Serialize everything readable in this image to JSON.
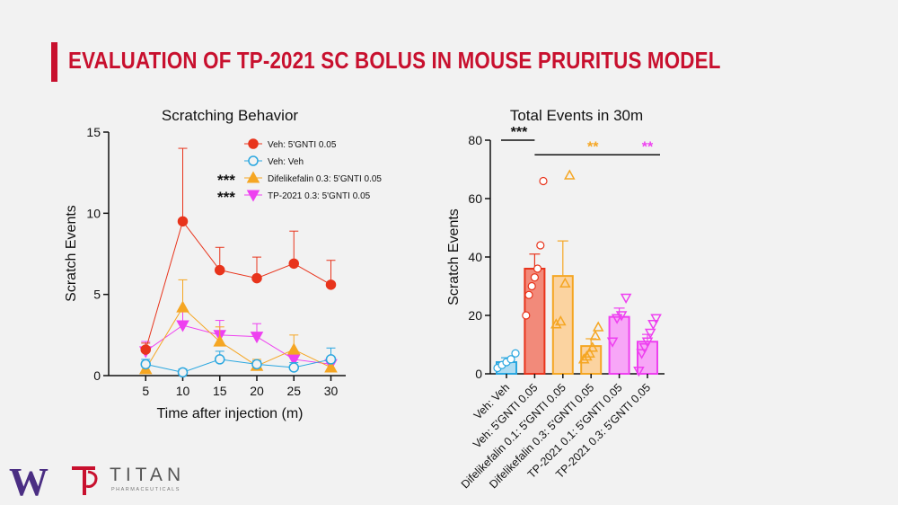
{
  "slide": {
    "title": "EVALUATION OF TP-2021 SC BOLUS IN MOUSE PRURITUS MODEL"
  },
  "logos": {
    "uw": "W",
    "titan_name": "TITAN",
    "titan_sub": "PHARMACEUTICALS"
  },
  "chart_data": [
    {
      "type": "line",
      "title": "Scratching Behavior",
      "xlabel": "Time after injection (m)",
      "ylabel": "Scratch Events",
      "x": [
        5,
        10,
        15,
        20,
        25,
        30
      ],
      "xlim": [
        0,
        32
      ],
      "ylim": [
        0,
        15
      ],
      "yticks": [
        0,
        5,
        10,
        15
      ],
      "series": [
        {
          "name": "Veh: 5'GNTI 0.05",
          "color": "#e8341c",
          "marker": "circle-filled",
          "values": [
            1.6,
            9.5,
            6.5,
            6.0,
            6.9,
            5.6
          ],
          "errors": [
            0.4,
            4.5,
            1.4,
            1.3,
            2.0,
            1.5
          ],
          "sig": ""
        },
        {
          "name": "Veh: Veh",
          "color": "#2aa7e0",
          "marker": "circle-open",
          "values": [
            0.7,
            0.2,
            1.0,
            0.7,
            0.5,
            1.0
          ],
          "errors": [
            0.3,
            0.2,
            0.5,
            0.2,
            0.3,
            0.7
          ],
          "sig": ""
        },
        {
          "name": "Difelikefalin 0.3: 5'GNTI 0.05",
          "color": "#f5a623",
          "marker": "triangle-up",
          "values": [
            0.4,
            4.2,
            2.1,
            0.6,
            1.6,
            0.5
          ],
          "errors": [
            0.4,
            1.7,
            0.9,
            0.4,
            0.9,
            0.4
          ],
          "sig": "***"
        },
        {
          "name": "TP-2021 0.3: 5'GNTI 0.05",
          "color": "#ee40f0",
          "marker": "triangle-down",
          "values": [
            1.5,
            3.1,
            2.5,
            2.4,
            1.0,
            0.7
          ],
          "errors": [
            0.6,
            0.9,
            0.9,
            0.8,
            0.5,
            0.4
          ],
          "sig": "***"
        }
      ]
    },
    {
      "type": "bar",
      "title": "Total Events in 30m",
      "xlabel": "",
      "ylabel": "Scratch Events",
      "ylim": [
        0,
        80
      ],
      "yticks": [
        0,
        20,
        40,
        60,
        80
      ],
      "categories": [
        "Veh: Veh",
        "Veh: 5'GNTI 0.05",
        "Difelikefalin 0.1: 5'GNTI 0.05",
        "Difelikefalin 0.3: 5'GNTI 0.05",
        "TP-2021 0.1: 5'GNTI 0.05",
        "TP-2021 0.3: 5'GNTI 0.05"
      ],
      "values": [
        4,
        36,
        33.5,
        9.5,
        19.5,
        11
      ],
      "errors": [
        1.5,
        5,
        12,
        2.5,
        3,
        2.5
      ],
      "colors": [
        "#2aa7e0",
        "#e8341c",
        "#f5a623",
        "#f5a623",
        "#ee40f0",
        "#ee40f0"
      ],
      "fills": [
        "#aedcf2",
        "#f28a7a",
        "#fbd3a0",
        "#fbd3a0",
        "#f7a6f7",
        "#f7a6f7"
      ],
      "markers": [
        "circle",
        "circle",
        "triangle-up",
        "triangle-up",
        "triangle-down",
        "triangle-down"
      ],
      "points": [
        [
          2,
          3,
          4,
          5,
          7
        ],
        [
          20,
          27,
          30,
          33,
          36,
          44,
          66
        ],
        [
          17,
          18,
          31,
          68
        ],
        [
          5,
          6,
          7,
          9,
          13,
          16
        ],
        [
          11,
          19,
          20,
          26
        ],
        [
          1,
          7,
          9,
          11,
          14,
          17,
          19
        ]
      ],
      "sig": [
        {
          "label": "***",
          "color": "#111111",
          "from": 0,
          "to": 1,
          "y": 80
        },
        {
          "label": "**",
          "color": "#f5a623",
          "from": 1,
          "to": 3,
          "y": 75
        },
        {
          "label": "**",
          "color": "#ee40f0",
          "from": 1,
          "to": 5,
          "y": 75
        }
      ]
    }
  ]
}
